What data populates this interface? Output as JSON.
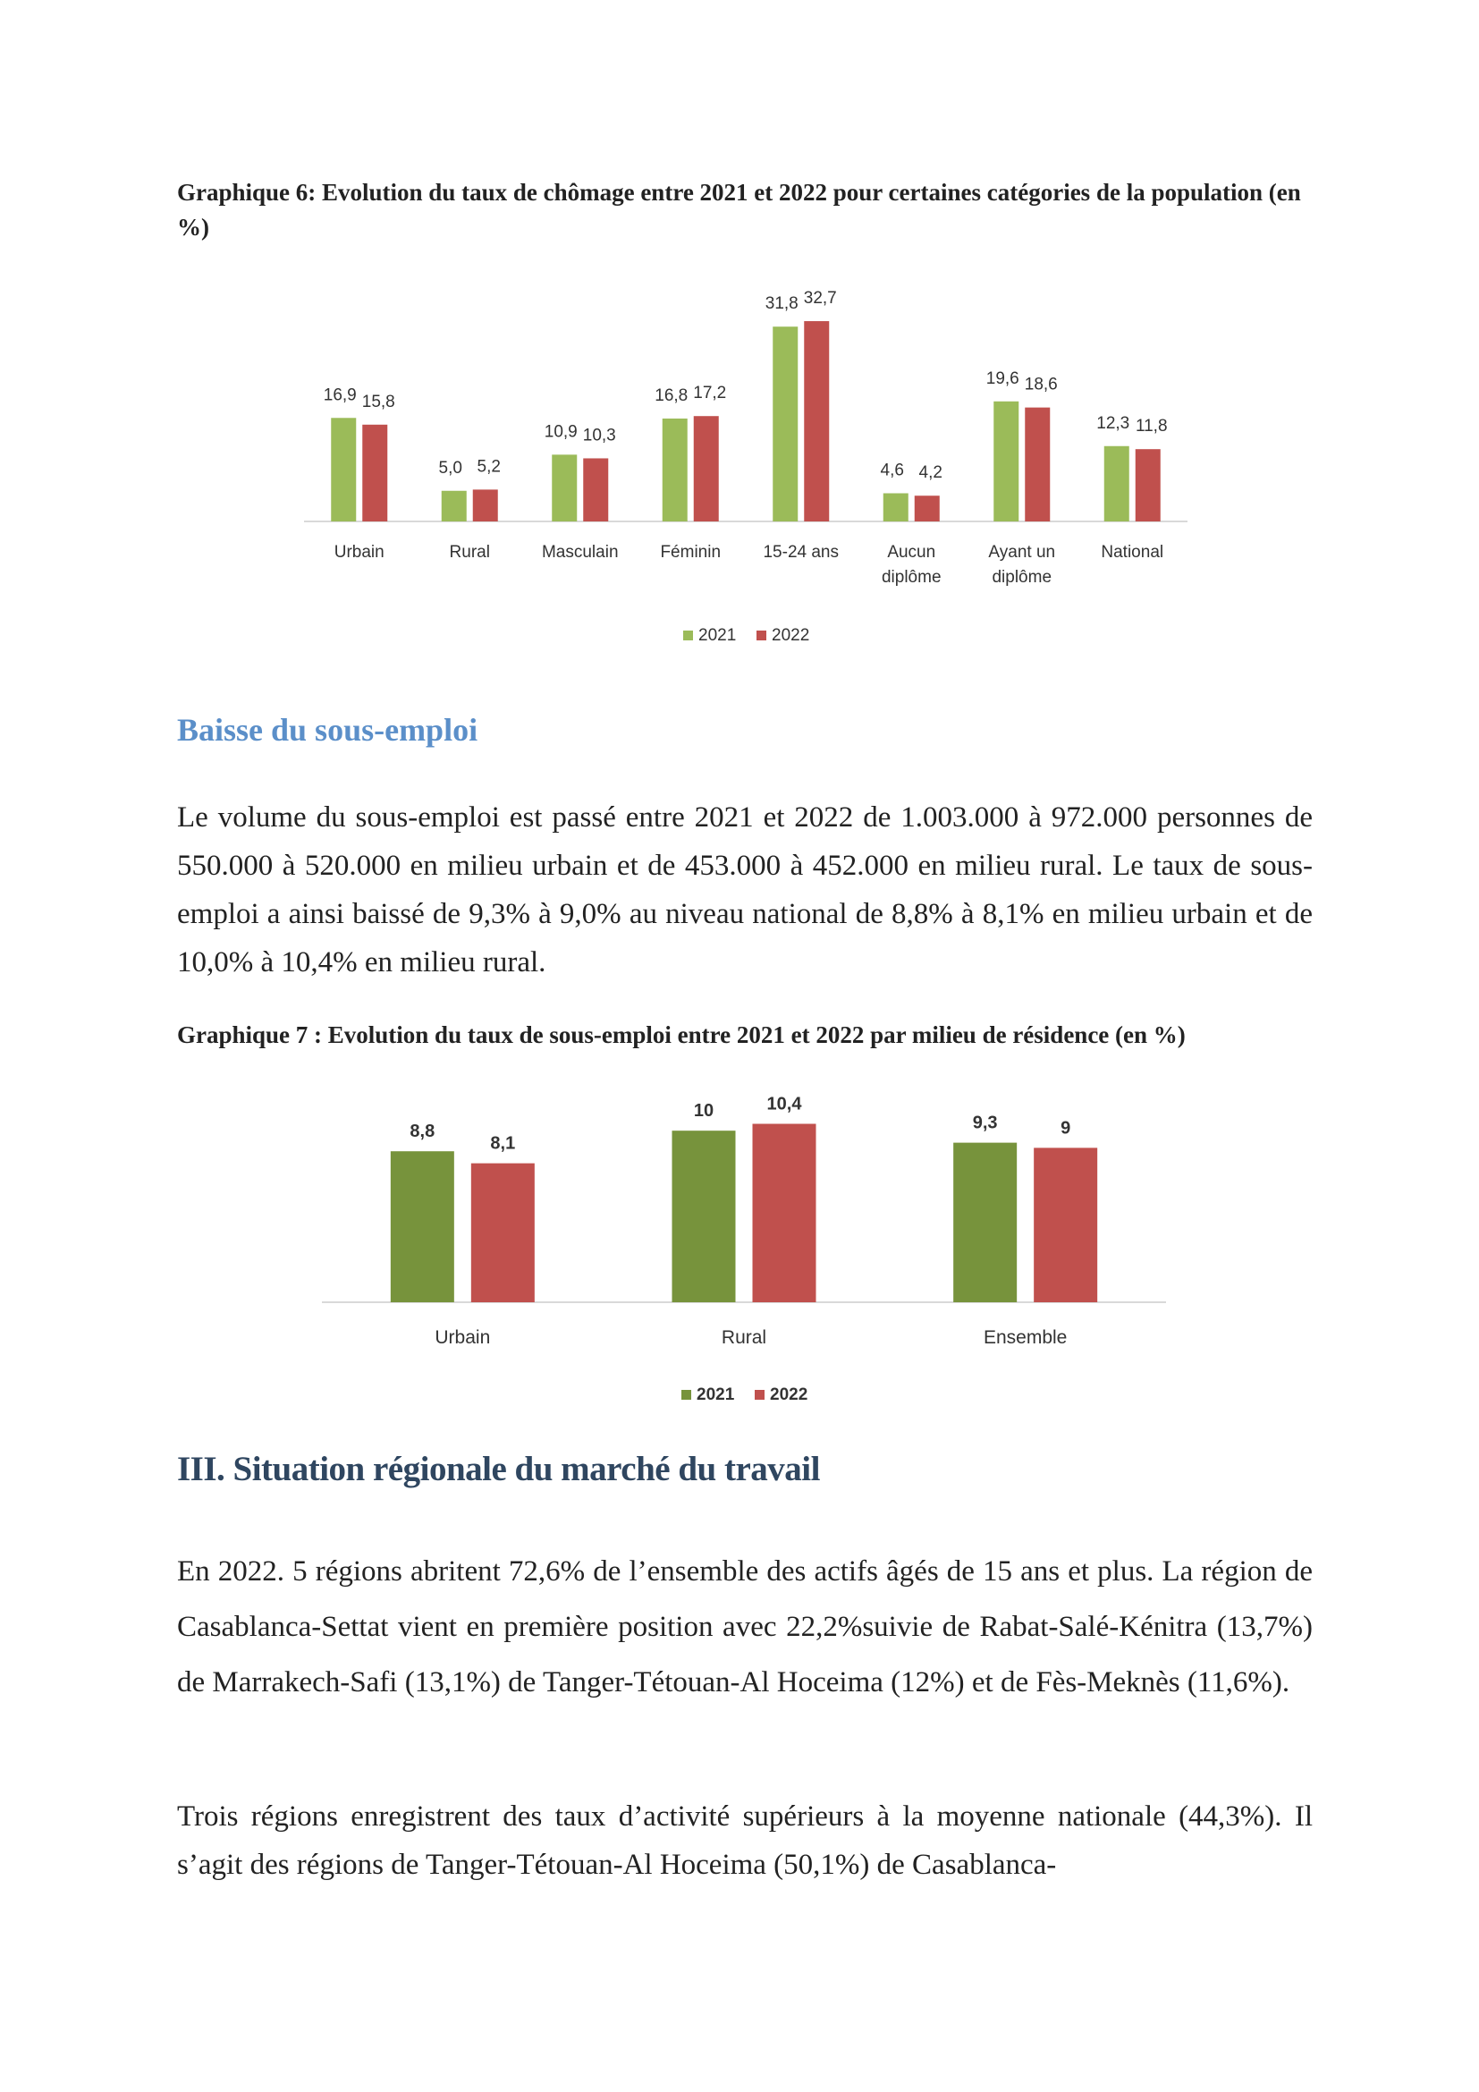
{
  "graph6": {
    "caption": "Graphique 6: Evolution du taux de chômage entre 2021 et 2022 pour certaines catégories de la population (en %)"
  },
  "graph7": {
    "caption": "Graphique 7 : Evolution du taux de sous-emploi entre 2021 et 2022 par milieu de résidence (en %)"
  },
  "section_underemployment": {
    "title": "Baisse du sous-emploi",
    "paragraph": "Le volume du sous-emploi est passé entre 2021 et 2022 de 1.003.000 à 972.000 personnes de 550.000 à 520.000 en milieu urbain et de 453.000 à 452.000 en milieu rural. Le taux de sous-emploi a ainsi baissé de 9,3% à 9,0% au niveau national de 8,8% à 8,1% en milieu urbain et de 10,0% à 10,4% en milieu rural."
  },
  "section_regional": {
    "title": "III. Situation régionale du marché du travail",
    "paragraph1": "En 2022. 5 régions abritent 72,6% de l’ensemble des actifs âgés de 15 ans et plus. La région de Casablanca-Settat vient en première position avec 22,2%suivie de Rabat-Salé-Kénitra (13,7%) de Marrakech-Safi (13,1%) de Tanger-Tétouan-Al Hoceima (12%) et de Fès-Meknès (11,6%).",
    "paragraph2": "Trois régions enregistrent des taux d’activité supérieurs à la moyenne nationale (44,3%). Il s’agit des régions de Tanger-Tétouan-Al Hoceima (50,1%) de Casablanca-"
  },
  "chart_data": [
    {
      "type": "bar",
      "title": "Graphique 6: Evolution du taux de chômage entre 2021 et 2022 pour certaines catégories de la population (en %)",
      "categories": [
        "Urbain",
        "Rural",
        "Masculain",
        "Féminin",
        "15-24 ans",
        "Aucun diplôme",
        "Ayant un diplôme",
        "National"
      ],
      "category_lines": [
        [
          "Urbain"
        ],
        [
          "Rural"
        ],
        [
          "Masculain"
        ],
        [
          "Féminin"
        ],
        [
          "15-24 ans"
        ],
        [
          "Aucun",
          "diplôme"
        ],
        [
          "Ayant un",
          "diplôme"
        ],
        [
          "National"
        ]
      ],
      "series": [
        {
          "name": "2021",
          "color": "#9bbb59",
          "values": [
            16.9,
            5.0,
            10.9,
            16.8,
            31.8,
            4.6,
            19.6,
            12.3
          ],
          "labels": [
            "16,9",
            "5,0",
            "10,9",
            "16,8",
            "31,8",
            "4,6",
            "19,6",
            "12,3"
          ]
        },
        {
          "name": "2022",
          "color": "#c0504d",
          "values": [
            15.8,
            5.2,
            10.3,
            17.2,
            32.7,
            4.2,
            18.6,
            11.8
          ],
          "labels": [
            "15,8",
            "5,2",
            "10,3",
            "17,2",
            "32,7",
            "4,2",
            "18,6",
            "11,8"
          ]
        }
      ],
      "xlabel": "",
      "ylabel": "",
      "ylim": [
        0,
        33
      ],
      "grid": false,
      "legend": "bottom",
      "label_weight": "normal"
    },
    {
      "type": "bar",
      "title": "Graphique 7 : Evolution du taux de sous-emploi entre 2021 et 2022 par milieu de résidence (en %)",
      "categories": [
        "Urbain",
        "Rural",
        "Ensemble"
      ],
      "category_lines": [
        [
          "Urbain"
        ],
        [
          "Rural"
        ],
        [
          "Ensemble"
        ]
      ],
      "series": [
        {
          "name": "2021",
          "color": "#77933c",
          "values": [
            8.8,
            10,
            9.3
          ],
          "labels": [
            "8,8",
            "10",
            "9,3"
          ]
        },
        {
          "name": "2022",
          "color": "#c0504d",
          "values": [
            8.1,
            10.4,
            9
          ],
          "labels": [
            "8,1",
            "10,4",
            "9"
          ]
        }
      ],
      "xlabel": "",
      "ylabel": "",
      "ylim": [
        0,
        11
      ],
      "grid": false,
      "legend": "bottom",
      "label_weight": "bold"
    }
  ]
}
